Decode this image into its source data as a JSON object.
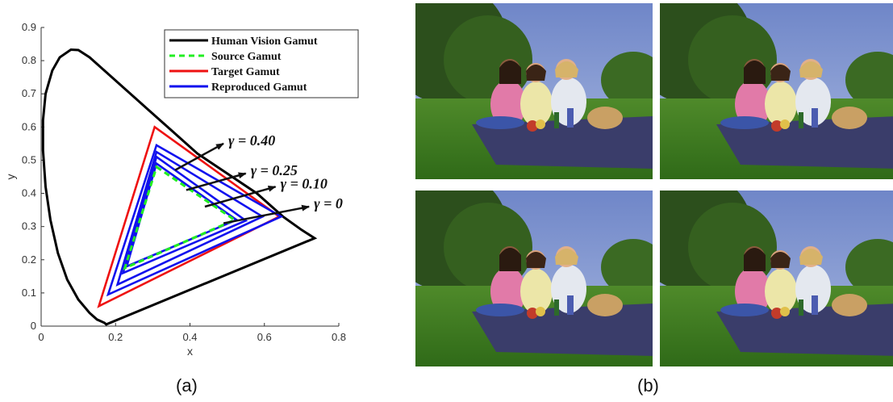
{
  "chart_data": {
    "type": "line",
    "xlabel": "x",
    "ylabel": "y",
    "xlim": [
      0,
      0.8
    ],
    "ylim": [
      0,
      0.9
    ],
    "xticks": [
      "0",
      "0.2",
      "0.4",
      "0.6",
      "0.8"
    ],
    "yticks": [
      "0",
      "0.1",
      "0.2",
      "0.3",
      "0.4",
      "0.5",
      "0.6",
      "0.7",
      "0.8",
      "0.9"
    ],
    "legend_position": "top-right",
    "grid": false,
    "legend": [
      {
        "label": "Human Vision Gamut",
        "color": "#000000",
        "style": "solid"
      },
      {
        "label": "Source Gamut",
        "color": "#22ee22",
        "style": "dashed"
      },
      {
        "label": "Target Gamut",
        "color": "#ee1111",
        "style": "solid"
      },
      {
        "label": "Reproduced Gamut",
        "color": "#1111ee",
        "style": "solid"
      }
    ],
    "series": [
      {
        "name": "Human Vision Gamut",
        "color": "#000000",
        "closed": true,
        "points": [
          [
            0.175,
            0.005
          ],
          [
            0.17,
            0.01
          ],
          [
            0.15,
            0.02
          ],
          [
            0.13,
            0.04
          ],
          [
            0.1,
            0.08
          ],
          [
            0.07,
            0.14
          ],
          [
            0.045,
            0.22
          ],
          [
            0.025,
            0.32
          ],
          [
            0.012,
            0.42
          ],
          [
            0.005,
            0.53
          ],
          [
            0.005,
            0.62
          ],
          [
            0.012,
            0.7
          ],
          [
            0.03,
            0.77
          ],
          [
            0.05,
            0.81
          ],
          [
            0.08,
            0.833
          ],
          [
            0.1,
            0.832
          ],
          [
            0.13,
            0.81
          ],
          [
            0.17,
            0.77
          ],
          [
            0.22,
            0.72
          ],
          [
            0.28,
            0.66
          ],
          [
            0.35,
            0.59
          ],
          [
            0.42,
            0.52
          ],
          [
            0.5,
            0.46
          ],
          [
            0.58,
            0.4
          ],
          [
            0.65,
            0.33
          ],
          [
            0.7,
            0.29
          ],
          [
            0.735,
            0.265
          ]
        ]
      },
      {
        "name": "Target Gamut",
        "color": "#ee1111",
        "closed": true,
        "points": [
          [
            0.305,
            0.6
          ],
          [
            0.64,
            0.33
          ],
          [
            0.155,
            0.06
          ]
        ]
      },
      {
        "name": "Source Gamut",
        "color": "#22ee22",
        "closed": true,
        "points": [
          [
            0.31,
            0.48
          ],
          [
            0.52,
            0.32
          ],
          [
            0.225,
            0.175
          ]
        ]
      },
      {
        "name": "Reproduced Gamut γ=0",
        "color": "#1111ee",
        "closed": true,
        "points": [
          [
            0.31,
            0.49
          ],
          [
            0.525,
            0.32
          ],
          [
            0.23,
            0.18
          ]
        ]
      },
      {
        "name": "Reproduced Gamut γ=0.10",
        "color": "#1111ee",
        "closed": true,
        "points": [
          [
            0.31,
            0.51
          ],
          [
            0.55,
            0.318
          ],
          [
            0.22,
            0.16
          ]
        ]
      },
      {
        "name": "Reproduced Gamut γ=0.25",
        "color": "#1111ee",
        "closed": true,
        "points": [
          [
            0.31,
            0.525
          ],
          [
            0.595,
            0.33
          ],
          [
            0.205,
            0.125
          ]
        ]
      },
      {
        "name": "Reproduced Gamut γ=0.40",
        "color": "#1111ee",
        "closed": true,
        "points": [
          [
            0.31,
            0.545
          ],
          [
            0.645,
            0.33
          ],
          [
            0.18,
            0.095
          ]
        ]
      }
    ],
    "annotations": [
      {
        "text": "γ = 0.40",
        "from": [
          0.36,
          0.47
        ],
        "to": [
          0.49,
          0.55
        ]
      },
      {
        "text": "γ = 0.25",
        "from": [
          0.39,
          0.41
        ],
        "to": [
          0.55,
          0.46
        ]
      },
      {
        "text": "γ = 0.10",
        "from": [
          0.44,
          0.36
        ],
        "to": [
          0.63,
          0.42
        ]
      },
      {
        "text": "γ = 0",
        "from": [
          0.49,
          0.31
        ],
        "to": [
          0.72,
          0.36
        ]
      }
    ]
  },
  "captions": {
    "a": "(a)",
    "b": "(b)"
  },
  "photos_panel": {
    "count": 4
  }
}
